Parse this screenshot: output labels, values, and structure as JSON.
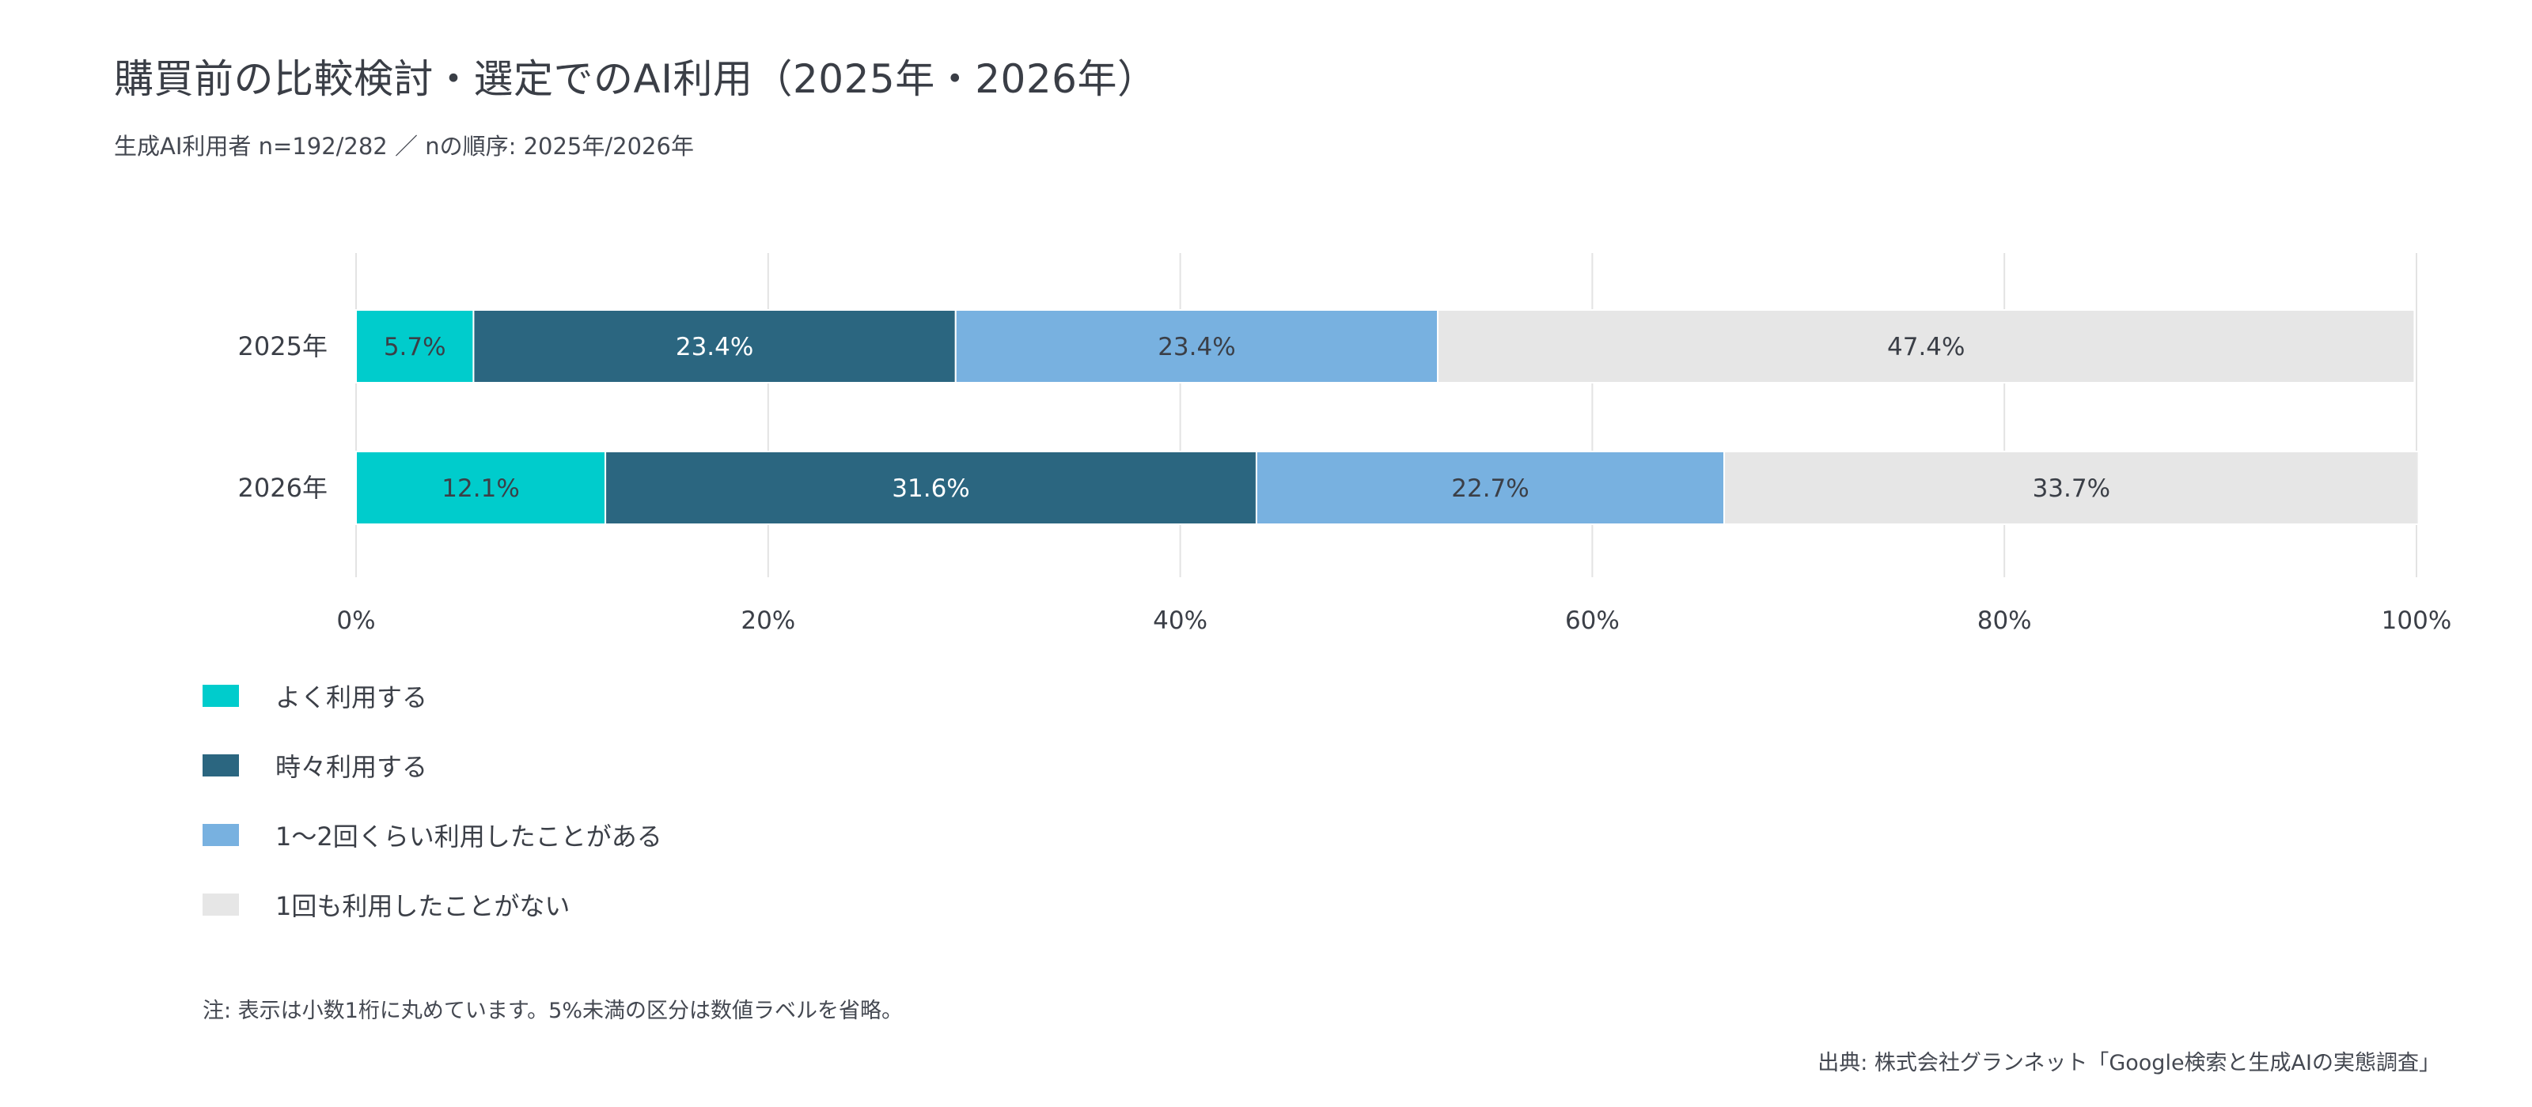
{
  "title": "購買前の比較検討・選定でのAI利用（2025年・2026年）",
  "subtitle": "生成AI利用者 n=192/282 ／ nの順序: 2025年/2026年",
  "note": "注: 表示は小数1桁に丸めています。5%未満の区分は数値ラベルを省略。",
  "source": "出典: 株式会社グランネット「Google検索と生成AIの実態調査」",
  "chart_data": {
    "type": "bar",
    "orientation": "horizontal",
    "stacked": true,
    "percent": true,
    "categories": [
      "2025年",
      "2026年"
    ],
    "series": [
      {
        "name": "よく利用する",
        "color": "#00CCCC",
        "label_color": "#3b3f47",
        "values": [
          5.7,
          12.1
        ],
        "labels": [
          "5.7%",
          "12.1%"
        ]
      },
      {
        "name": "時々利用する",
        "color": "#2B6680",
        "label_color": "#ffffff",
        "values": [
          23.4,
          31.6
        ],
        "labels": [
          "23.4%",
          "31.6%"
        ]
      },
      {
        "name": "1〜2回くらい利用したことがある",
        "color": "#78B1E0",
        "label_color": "#3b3f47",
        "values": [
          23.4,
          22.7
        ],
        "labels": [
          "23.4%",
          "22.7%"
        ]
      },
      {
        "name": "1回も利用したことがない",
        "color": "#E6E6E6",
        "label_color": "#3b3f47",
        "values": [
          47.4,
          33.7
        ],
        "labels": [
          "47.4%",
          "33.7%"
        ]
      }
    ],
    "xlim": [
      0,
      100
    ],
    "xticks": [
      0,
      20,
      40,
      60,
      80,
      100
    ],
    "xtick_labels": [
      "0%",
      "20%",
      "40%",
      "60%",
      "80%",
      "100%"
    ],
    "grid": true,
    "legend_position": "bottom-left"
  }
}
